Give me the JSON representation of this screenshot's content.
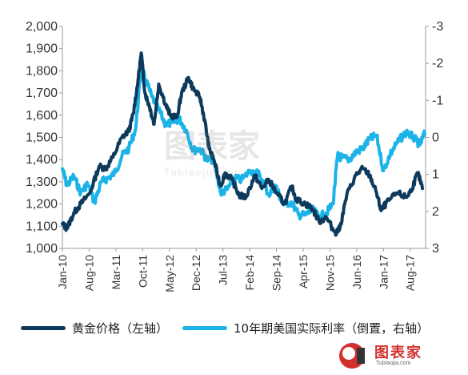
{
  "chart_data": {
    "type": "line",
    "title": "",
    "x_categories": [
      "Jan-10",
      "Aug-10",
      "Mar-11",
      "Oct-11",
      "May-12",
      "Dec-12",
      "Jul-13",
      "Feb-14",
      "Sep-14",
      "Apr-15",
      "Nov-15",
      "Jun-16",
      "Jan-17",
      "Aug-17"
    ],
    "y_left": {
      "ticks": [
        "1,000",
        "1,100",
        "1,200",
        "1,300",
        "1,400",
        "1,500",
        "1,600",
        "1,700",
        "1,800",
        "1,900",
        "2,000"
      ],
      "range": [
        1000,
        2000
      ]
    },
    "y_right": {
      "ticks": [
        "-3",
        "-2",
        "-1",
        "0",
        "1",
        "2",
        "3"
      ],
      "range": [
        -3,
        3
      ],
      "inverted": true
    },
    "series": [
      {
        "name": "黄金价格（左轴）",
        "axis": "left",
        "color": "#0d3a5c",
        "x": [
          2010.0,
          2010.1,
          2010.25,
          2010.4,
          2010.6,
          2010.8,
          2010.95,
          2011.1,
          2011.3,
          2011.45,
          2011.55,
          2011.65,
          2011.72,
          2011.8,
          2011.9,
          2012.0,
          2012.1,
          2012.25,
          2012.35,
          2012.5,
          2012.6,
          2012.75,
          2012.85,
          2013.0,
          2013.1,
          2013.2,
          2013.3,
          2013.45,
          2013.55,
          2013.7,
          2013.85,
          2014.0,
          2014.2,
          2014.35,
          2014.5,
          2014.7,
          2014.85,
          2015.0,
          2015.1,
          2015.3,
          2015.45,
          2015.6,
          2015.75,
          2015.95,
          2016.05,
          2016.2,
          2016.4,
          2016.55,
          2016.7,
          2016.85,
          2016.95,
          2017.05,
          2017.3,
          2017.5,
          2017.6,
          2017.75,
          2017.85
        ],
        "y": [
          1110,
          1090,
          1160,
          1200,
          1250,
          1370,
          1360,
          1410,
          1500,
          1530,
          1610,
          1760,
          1880,
          1700,
          1640,
          1560,
          1740,
          1650,
          1600,
          1590,
          1700,
          1770,
          1720,
          1680,
          1580,
          1450,
          1400,
          1280,
          1340,
          1310,
          1240,
          1230,
          1330,
          1270,
          1310,
          1240,
          1200,
          1280,
          1220,
          1200,
          1180,
          1120,
          1140,
          1070,
          1090,
          1240,
          1330,
          1360,
          1330,
          1250,
          1170,
          1200,
          1250,
          1230,
          1260,
          1340,
          1270
        ]
      },
      {
        "name": "10年期美国实际利率（倒置，右轴）",
        "axis": "right",
        "color": "#1cb4e8",
        "x": [
          2010.0,
          2010.1,
          2010.25,
          2010.4,
          2010.55,
          2010.7,
          2010.85,
          2011.0,
          2011.15,
          2011.3,
          2011.45,
          2011.6,
          2011.72,
          2011.8,
          2011.95,
          2012.1,
          2012.25,
          2012.4,
          2012.55,
          2012.7,
          2012.85,
          2013.0,
          2013.15,
          2013.3,
          2013.45,
          2013.6,
          2013.75,
          2013.9,
          2014.1,
          2014.3,
          2014.5,
          2014.65,
          2014.8,
          2015.0,
          2015.15,
          2015.3,
          2015.45,
          2015.6,
          2015.75,
          2015.9,
          2016.0,
          2016.1,
          2016.25,
          2016.4,
          2016.55,
          2016.7,
          2016.85,
          2017.0,
          2017.15,
          2017.3,
          2017.5,
          2017.65,
          2017.8,
          2017.9
        ],
        "y": [
          0.85,
          1.3,
          1.05,
          1.5,
          1.25,
          1.75,
          1.2,
          1.1,
          0.95,
          0.5,
          0.3,
          -0.25,
          -1.9,
          -1.6,
          -1.1,
          -0.75,
          -0.35,
          -0.4,
          -0.5,
          -0.2,
          0.35,
          0.3,
          0.6,
          0.6,
          1.5,
          1.4,
          1.1,
          1.15,
          0.9,
          1.0,
          1.55,
          1.3,
          1.8,
          1.75,
          2.1,
          2.1,
          1.95,
          2.15,
          2.05,
          1.8,
          0.5,
          0.55,
          0.6,
          0.4,
          0.3,
          0.05,
          -0.05,
          0.9,
          0.45,
          0.15,
          -0.15,
          0.0,
          0.2,
          -0.1
        ]
      }
    ],
    "legend_position": "bottom",
    "grid": false
  },
  "watermark": {
    "logo_text": "图表家",
    "sub_text": "Tubiaojia.com"
  }
}
